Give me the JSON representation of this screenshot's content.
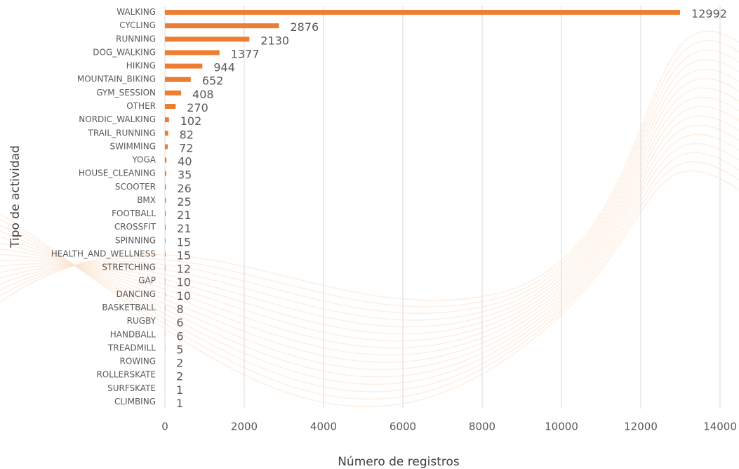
{
  "chart_data": {
    "type": "bar",
    "orientation": "horizontal",
    "x_label": "Número de registros",
    "y_label": "Tipo de actividad",
    "categories": [
      "WALKING",
      "CYCLING",
      "RUNNING",
      "DOG_WALKING",
      "HIKING",
      "MOUNTAIN_BIKING",
      "GYM_SESSION",
      "OTHER",
      "NORDIC_WALKING",
      "TRAIL_RUNNING",
      "SWIMMING",
      "YOGA",
      "HOUSE_CLEANING",
      "SCOOTER",
      "BMX",
      "FOOTBALL",
      "CROSSFIT",
      "SPINNING",
      "HEALTH_AND_WELLNESS",
      "STRETCHING",
      "GAP",
      "DANCING",
      "BASKETBALL",
      "RUGBY",
      "HANDBALL",
      "TREADMILL",
      "ROWING",
      "ROLLERSKATE",
      "SURFSKATE",
      "CLIMBING"
    ],
    "values": [
      12992,
      2876,
      2130,
      1377,
      944,
      652,
      408,
      270,
      102,
      82,
      72,
      40,
      35,
      26,
      25,
      21,
      21,
      15,
      15,
      12,
      10,
      10,
      8,
      6,
      6,
      5,
      2,
      2,
      1,
      1
    ],
    "color": "#ed7d31",
    "xlim": [
      0,
      14000
    ],
    "xticks": [
      0,
      2000,
      4000,
      6000,
      8000,
      10000,
      12000,
      14000
    ],
    "grid": true
  }
}
